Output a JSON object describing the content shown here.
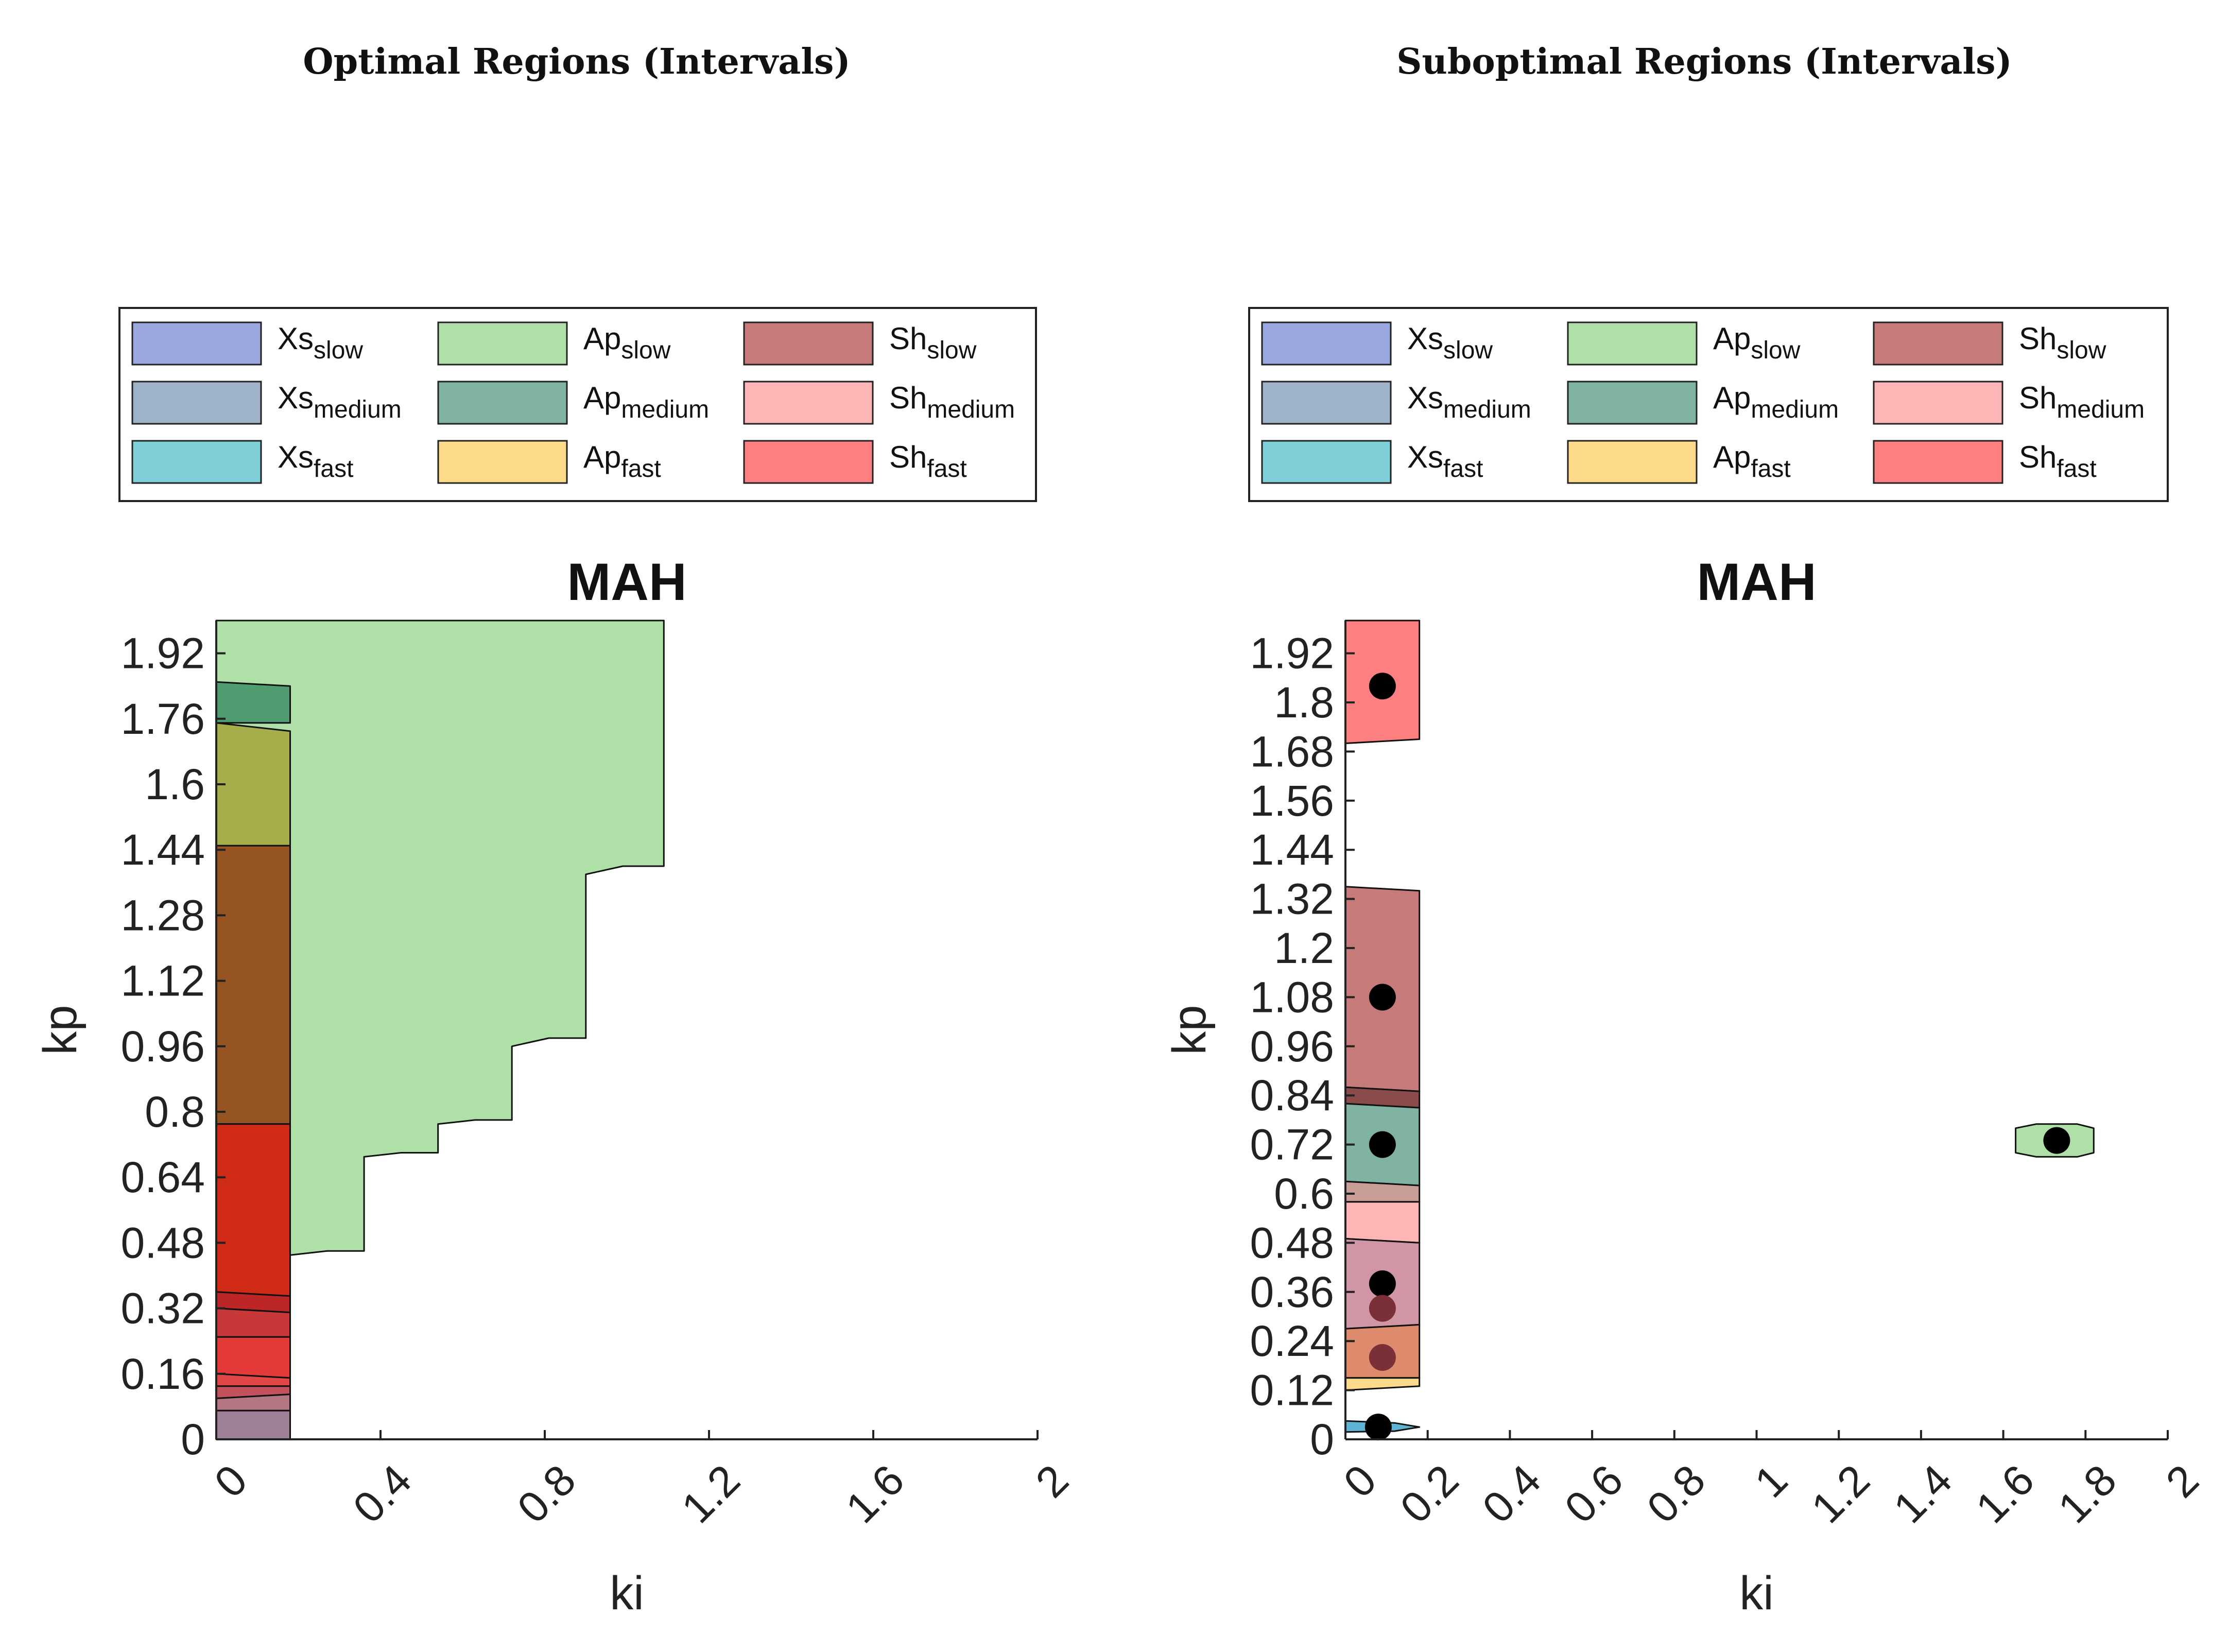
{
  "figure_titles": [
    "Optimal Regions (Intervals)",
    "Suboptimal Regions (Intervals)"
  ],
  "legend": [
    {
      "base": "Xs",
      "sub": "slow",
      "color": "#9aa8df"
    },
    {
      "base": "Xs",
      "sub": "medium",
      "color": "#9fb3c8"
    },
    {
      "base": "Xs",
      "sub": "fast",
      "color": "#7fcfd9"
    },
    {
      "base": "Ap",
      "sub": "slow",
      "color": "#aee0a8"
    },
    {
      "base": "Ap",
      "sub": "medium",
      "color": "#80b3a2"
    },
    {
      "base": "Ap",
      "sub": "fast",
      "color": "#fddb8a"
    },
    {
      "base": "Sh",
      "sub": "slow",
      "color": "#c67a7a"
    },
    {
      "base": "Sh",
      "sub": "medium",
      "color": "#fdb5b5"
    },
    {
      "base": "Sh",
      "sub": "fast",
      "color": "#fe7f7f"
    }
  ],
  "chart_data": [
    {
      "type": "area",
      "title": "MAH",
      "xlabel": "ki",
      "ylabel": "kp",
      "xlim": [
        0,
        2
      ],
      "ylim": [
        0,
        2
      ],
      "xticks": [
        "0",
        "0.4",
        "0.8",
        "1.2",
        "1.6",
        "2"
      ],
      "yticks": [
        "0",
        "0.16",
        "0.32",
        "0.48",
        "0.64",
        "0.8",
        "0.96",
        "1.12",
        "1.28",
        "1.44",
        "1.6",
        "1.76",
        "1.92"
      ],
      "regions": [
        {
          "name": "Ap_slow",
          "color": "#aee0a8",
          "polygon": [
            [
              0.18,
              0
            ],
            [
              0.18,
              0.45
            ],
            [
              0.27,
              0.46
            ],
            [
              0.36,
              0.46
            ],
            [
              0.36,
              0.69
            ],
            [
              0.45,
              0.7
            ],
            [
              0.54,
              0.7
            ],
            [
              0.54,
              0.77
            ],
            [
              0.63,
              0.78
            ],
            [
              0.72,
              0.78
            ],
            [
              0.72,
              0.96
            ],
            [
              0.81,
              0.98
            ],
            [
              0.9,
              0.98
            ],
            [
              0.9,
              1.38
            ],
            [
              0.99,
              1.4
            ],
            [
              1.09,
              1.4
            ],
            [
              1.09,
              2.0
            ],
            [
              0,
              2.0
            ],
            [
              0,
              0
            ]
          ]
        },
        {
          "name": "Ap_medium",
          "color": "#4f9c70",
          "polygon": [
            [
              0,
              1.75
            ],
            [
              0.18,
              1.75
            ],
            [
              0.18,
              1.84
            ],
            [
              0,
              1.85
            ]
          ]
        },
        {
          "name": "Ap_fast mix",
          "color": "#a6ad4b",
          "polygon": [
            [
              0,
              1.45
            ],
            [
              0.18,
              1.45
            ],
            [
              0.18,
              1.73
            ],
            [
              0,
              1.75
            ]
          ]
        },
        {
          "name": "Sh mix 1",
          "color": "#975423",
          "polygon": [
            [
              0,
              0.77
            ],
            [
              0.18,
              0.77
            ],
            [
              0.18,
              1.45
            ],
            [
              0,
              1.45
            ]
          ]
        },
        {
          "name": "Sh_fast mix",
          "color": "#cf2b16",
          "polygon": [
            [
              0,
              0.36
            ],
            [
              0.18,
              0.35
            ],
            [
              0.18,
              0.77
            ],
            [
              0,
              0.77
            ]
          ]
        },
        {
          "name": "Sh band a",
          "color": "#bd2626",
          "polygon": [
            [
              0,
              0.32
            ],
            [
              0.18,
              0.31
            ],
            [
              0.18,
              0.35
            ],
            [
              0,
              0.36
            ]
          ]
        },
        {
          "name": "Sh band b",
          "color": "#c93838",
          "polygon": [
            [
              0,
              0.25
            ],
            [
              0.18,
              0.25
            ],
            [
              0.18,
              0.31
            ],
            [
              0,
              0.32
            ]
          ]
        },
        {
          "name": "Sh band c",
          "color": "#e53a3a",
          "polygon": [
            [
              0,
              0.16
            ],
            [
              0.18,
              0.15
            ],
            [
              0.18,
              0.25
            ],
            [
              0,
              0.25
            ]
          ]
        },
        {
          "name": "Sh band d",
          "color": "#e24747",
          "polygon": [
            [
              0,
              0.13
            ],
            [
              0.18,
              0.13
            ],
            [
              0.18,
              0.15
            ],
            [
              0,
              0.16
            ]
          ]
        },
        {
          "name": "Sh band e",
          "color": "#c4515e",
          "polygon": [
            [
              0,
              0.1
            ],
            [
              0.18,
              0.11
            ],
            [
              0.18,
              0.13
            ],
            [
              0,
              0.13
            ]
          ]
        },
        {
          "name": "Xs mix a",
          "color": "#b47680",
          "polygon": [
            [
              0,
              0.07
            ],
            [
              0.18,
              0.07
            ],
            [
              0.18,
              0.11
            ],
            [
              0,
              0.1
            ]
          ]
        },
        {
          "name": "Xs mix b",
          "color": "#9e8096",
          "polygon": [
            [
              0,
              0
            ],
            [
              0.18,
              0
            ],
            [
              0.18,
              0.07
            ],
            [
              0,
              0.07
            ]
          ]
        }
      ],
      "points": []
    },
    {
      "type": "area",
      "title": "MAH",
      "xlabel": "ki",
      "ylabel": "kp",
      "xlim": [
        0,
        2
      ],
      "ylim": [
        0,
        2
      ],
      "xticks": [
        "0",
        "0.2",
        "0.4",
        "0.6",
        "0.8",
        "1",
        "1.2",
        "1.4",
        "1.6",
        "1.8",
        "2"
      ],
      "yticks": [
        "0",
        "0.12",
        "0.24",
        "0.36",
        "0.48",
        "0.6",
        "0.72",
        "0.84",
        "0.96",
        "1.08",
        "1.2",
        "1.32",
        "1.44",
        "1.56",
        "1.68",
        "1.8",
        "1.92"
      ],
      "regions": [
        {
          "name": "Sh_fast",
          "color": "#fe7f7f",
          "polygon": [
            [
              0,
              1.7
            ],
            [
              0.18,
              1.71
            ],
            [
              0.18,
              2.0
            ],
            [
              0,
              2.0
            ]
          ]
        },
        {
          "name": "Sh_slow",
          "color": "#c67a7a",
          "polygon": [
            [
              0,
              0.86
            ],
            [
              0.18,
              0.85
            ],
            [
              0.18,
              1.34
            ],
            [
              0,
              1.35
            ]
          ]
        },
        {
          "name": "Sh_slow dark",
          "color": "#8a4b4b",
          "polygon": [
            [
              0,
              0.82
            ],
            [
              0.18,
              0.81
            ],
            [
              0.18,
              0.85
            ],
            [
              0,
              0.86
            ]
          ]
        },
        {
          "name": "Ap_medium",
          "color": "#80b3a2",
          "polygon": [
            [
              0,
              0.63
            ],
            [
              0.18,
              0.62
            ],
            [
              0.18,
              0.81
            ],
            [
              0,
              0.82
            ]
          ]
        },
        {
          "name": "Sh_medium mix",
          "color": "#c89d96",
          "polygon": [
            [
              0,
              0.58
            ],
            [
              0.18,
              0.58
            ],
            [
              0.18,
              0.62
            ],
            [
              0,
              0.63
            ]
          ]
        },
        {
          "name": "Sh_medium",
          "color": "#fdb5b5",
          "polygon": [
            [
              0,
              0.49
            ],
            [
              0.18,
              0.48
            ],
            [
              0.18,
              0.58
            ],
            [
              0,
              0.58
            ]
          ]
        },
        {
          "name": "Sh_slow light",
          "color": "#d096a6",
          "polygon": [
            [
              0,
              0.27
            ],
            [
              0.18,
              0.28
            ],
            [
              0.18,
              0.48
            ],
            [
              0,
              0.49
            ]
          ]
        },
        {
          "name": "Ap_fast mix",
          "color": "#de8b6d",
          "polygon": [
            [
              0,
              0.15
            ],
            [
              0.18,
              0.15
            ],
            [
              0.18,
              0.28
            ],
            [
              0,
              0.27
            ]
          ]
        },
        {
          "name": "Ap_fast",
          "color": "#fddb8a",
          "polygon": [
            [
              0,
              0.12
            ],
            [
              0.18,
              0.13
            ],
            [
              0.18,
              0.15
            ],
            [
              0,
              0.15
            ]
          ]
        },
        {
          "name": "Xs_fast",
          "color": "#5fb4d3",
          "polygon": [
            [
              0,
              0.018
            ],
            [
              0.12,
              0.02
            ],
            [
              0.18,
              0.03
            ],
            [
              0.12,
              0.04
            ],
            [
              0,
              0.045
            ]
          ]
        },
        {
          "name": "Ap_slow",
          "color": "#aee0a8",
          "polygon": [
            [
              1.63,
              0.7
            ],
            [
              1.68,
              0.69
            ],
            [
              1.78,
              0.69
            ],
            [
              1.82,
              0.7
            ],
            [
              1.82,
              0.76
            ],
            [
              1.78,
              0.77
            ],
            [
              1.68,
              0.77
            ],
            [
              1.63,
              0.76
            ]
          ]
        }
      ],
      "points": [
        {
          "ki": 0.09,
          "kp": 1.84,
          "color": "#000000"
        },
        {
          "ki": 0.09,
          "kp": 1.08,
          "color": "#000000"
        },
        {
          "ki": 0.09,
          "kp": 0.72,
          "color": "#000000"
        },
        {
          "ki": 0.09,
          "kp": 0.38,
          "color": "#000000"
        },
        {
          "ki": 0.09,
          "kp": 0.32,
          "color": "#7b2f36"
        },
        {
          "ki": 0.09,
          "kp": 0.2,
          "color": "#7b2f36"
        },
        {
          "ki": 0.08,
          "kp": 0.03,
          "color": "#000000"
        },
        {
          "ki": 1.73,
          "kp": 0.73,
          "color": "#000000"
        }
      ]
    }
  ]
}
